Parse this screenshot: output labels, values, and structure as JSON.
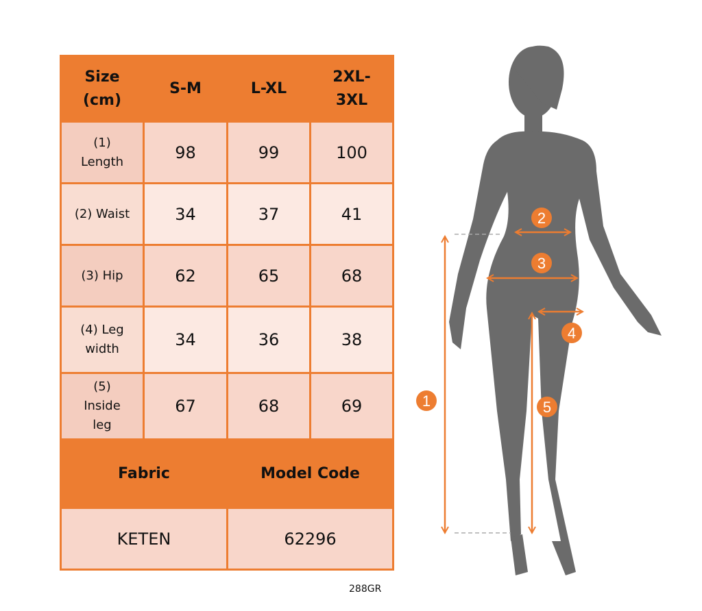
{
  "table": {
    "headers": [
      "Size\n(cm)",
      "S-M",
      "L-XL",
      "2XL-\n3XL"
    ],
    "rows": [
      {
        "label": "(1)\nLength",
        "values": [
          "98",
          "99",
          "100"
        ]
      },
      {
        "label": "(2) Waist",
        "values": [
          "34",
          "37",
          "41"
        ]
      },
      {
        "label": "(3) Hip",
        "values": [
          "62",
          "65",
          "68"
        ]
      },
      {
        "label": "(4) Leg\nwidth",
        "values": [
          "34",
          "36",
          "38"
        ]
      },
      {
        "label": "(5)\nInside\nleg",
        "values": [
          "67",
          "68",
          "69"
        ]
      }
    ],
    "footer_headers": [
      "Fabric",
      "Model Code"
    ],
    "footer_values": [
      "KETEN",
      "62296"
    ]
  },
  "figure": {
    "markers": [
      "1",
      "2",
      "3",
      "4",
      "5"
    ]
  },
  "product_code": "288GR",
  "colors": {
    "accent": "#ed7d31",
    "row_dark": "#f8d6ca",
    "row_light": "#fce9e2",
    "silhouette": "#6b6b6b"
  }
}
